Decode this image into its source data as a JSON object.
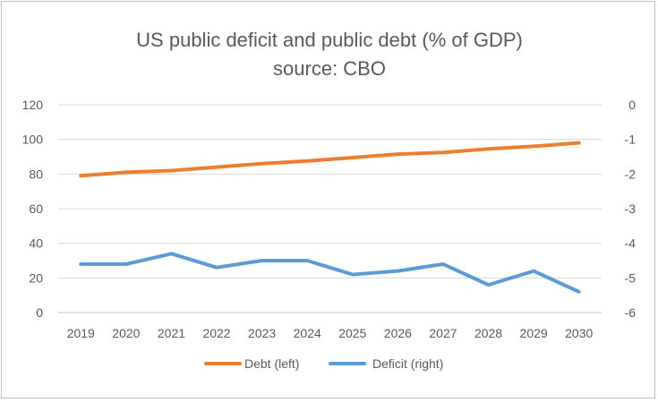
{
  "chart_data": {
    "type": "line",
    "title": "US public deficit and public debt (% of GDP)",
    "subtitle": "source: CBO",
    "categories": [
      "2019",
      "2020",
      "2021",
      "2022",
      "2023",
      "2024",
      "2025",
      "2026",
      "2027",
      "2028",
      "2029",
      "2030"
    ],
    "series": [
      {
        "name": "Debt (left)",
        "axis": "left",
        "color": "#ed7d31",
        "values": [
          79,
          81,
          82,
          84,
          86,
          87.5,
          89.5,
          91.5,
          92.5,
          94.5,
          96,
          98
        ]
      },
      {
        "name": "Deficit (right)",
        "axis": "right",
        "color": "#5b9bd5",
        "values": [
          -4.6,
          -4.6,
          -4.3,
          -4.7,
          -4.5,
          -4.5,
          -4.9,
          -4.8,
          -4.6,
          -5.2,
          -4.8,
          -5.4
        ]
      }
    ],
    "left_axis": {
      "ylim": [
        0,
        120
      ],
      "ticks": [
        "0",
        "20",
        "40",
        "60",
        "80",
        "100",
        "120"
      ]
    },
    "right_axis": {
      "ylim": [
        -6,
        0
      ],
      "ticks": [
        "-6",
        "-5",
        "-4",
        "-3",
        "-2",
        "-1",
        "0"
      ]
    },
    "grid": true,
    "legend_position": "bottom"
  }
}
